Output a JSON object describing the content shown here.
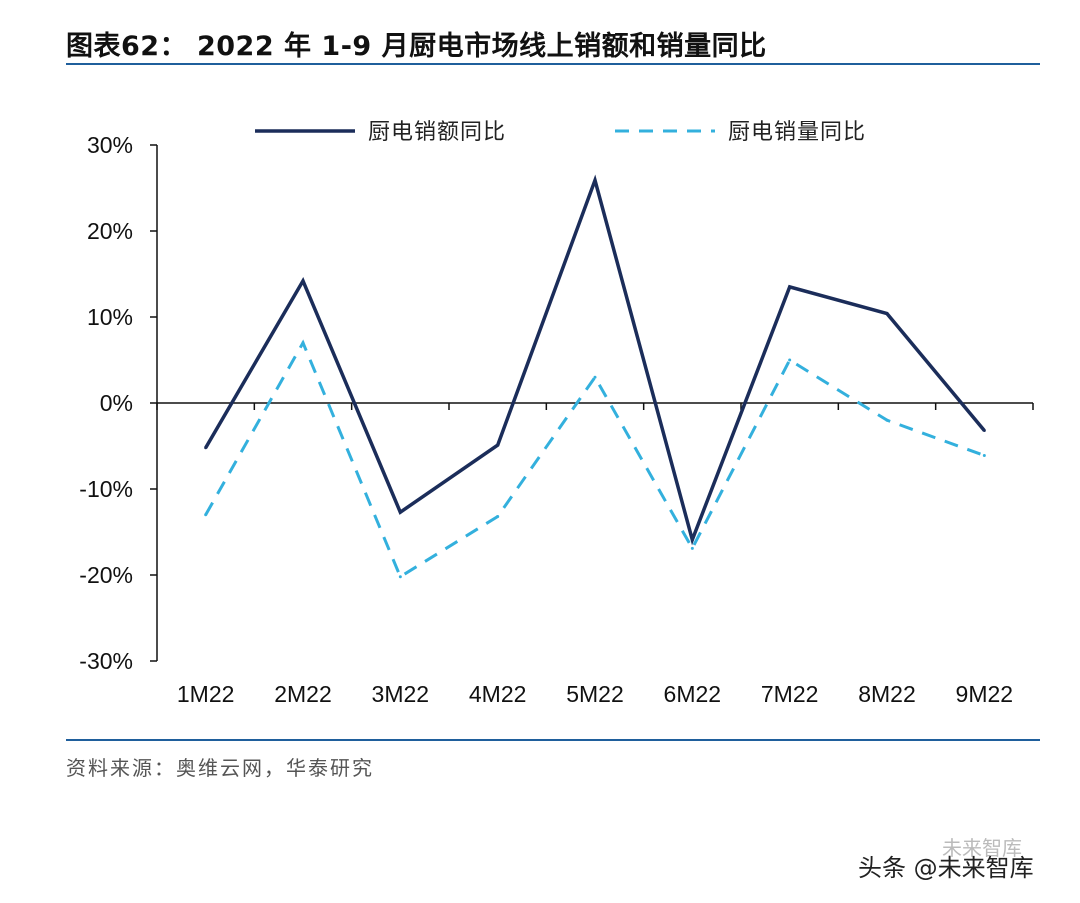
{
  "header": {
    "title": "图表62：  2022 年 1-9 月厨电市场线上销额和销量同比"
  },
  "footer": {
    "source": "资料来源：奥维云网，华泰研究"
  },
  "watermark": {
    "text": "头条 @未来智库",
    "faint_text": "未来智库"
  },
  "colors": {
    "rule": "#1f5f9c",
    "series_sales": "#1b2d5a",
    "series_volume": "#33b0dd"
  },
  "chart_data": {
    "type": "line",
    "title": "2022 年 1-9 月厨电市场线上销额和销量同比",
    "xlabel": "",
    "ylabel": "",
    "categories": [
      "1M22",
      "2M22",
      "3M22",
      "4M22",
      "5M22",
      "6M22",
      "7M22",
      "8M22",
      "9M22"
    ],
    "ylim": [
      -30,
      30
    ],
    "yticks": [
      30,
      20,
      10,
      0,
      -10,
      -20,
      -30
    ],
    "ytick_labels": [
      "30%",
      "20%",
      "10%",
      "0%",
      "-10%",
      "-20%",
      "-30%"
    ],
    "grid": false,
    "legend_position": "top",
    "series": [
      {
        "name": "厨电销额同比",
        "style": "solid",
        "values": [
          -5.2,
          14.2,
          -12.7,
          -4.9,
          25.9,
          -15.9,
          13.5,
          10.4,
          -3.2
        ]
      },
      {
        "name": "厨电销量同比",
        "style": "dashed",
        "values": [
          -13.0,
          7.0,
          -20.2,
          -13.2,
          3.0,
          -16.9,
          5.0,
          -2.0,
          -6.1
        ]
      }
    ]
  }
}
